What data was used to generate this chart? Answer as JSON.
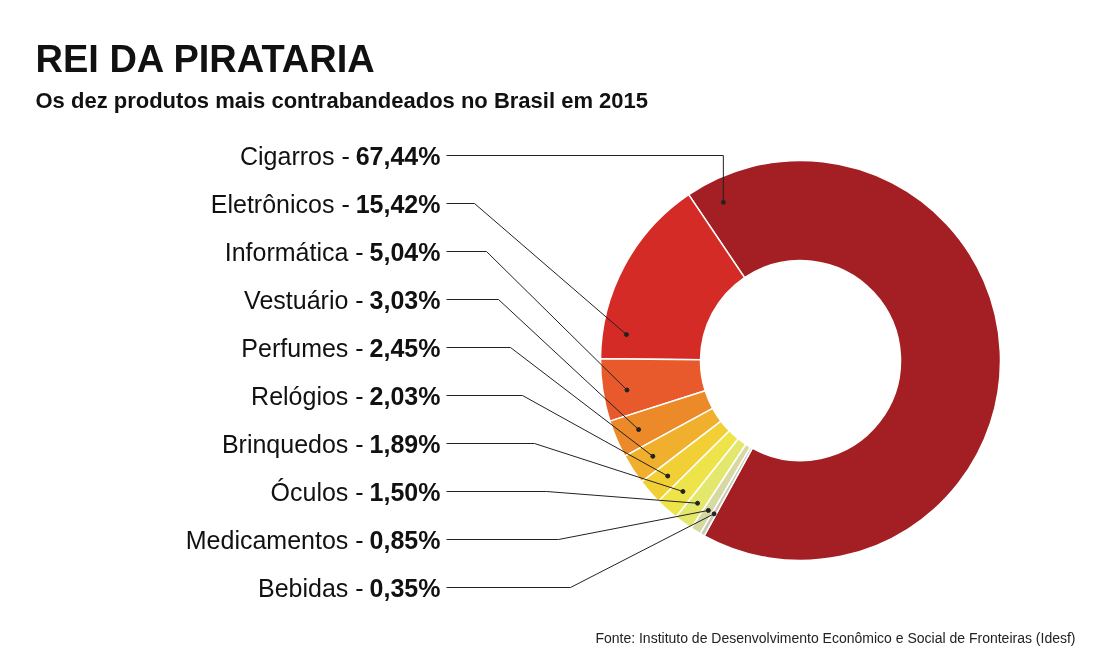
{
  "chart_data": {
    "type": "donut",
    "title": "REI DA PIRATARIA",
    "subtitle": "Os dez produtos mais contrabandeados no Brasil em 2015",
    "categories": [
      "Cigarros -",
      "Eletrônicos -",
      "Informática -",
      "Vestuário -",
      "Perfumes -",
      "Relógios -",
      "Brinquedos -",
      "Óculos -",
      "Medicamentos -",
      "Bebidas -"
    ],
    "values": [
      67.44,
      15.42,
      5.04,
      3.03,
      2.45,
      2.03,
      1.89,
      1.5,
      0.85,
      0.35
    ],
    "value_labels": [
      "67,44%",
      "15,42%",
      "5,04%",
      "3,03%",
      "2,45%",
      "2,03%",
      "1,89%",
      "1,50%",
      "0,85%",
      "0,35%"
    ],
    "colors": [
      "#a31f23",
      "#d52b27",
      "#e85a2c",
      "#ec8a2a",
      "#f0b02d",
      "#f2cf35",
      "#efe34a",
      "#e3e86c",
      "#d6d9a2",
      "#c8c8b2"
    ],
    "annotations": [
      "Fonte: Instituto de Desenvolvimento Econômico e Social de Fronteiras (Idesf)"
    ]
  }
}
